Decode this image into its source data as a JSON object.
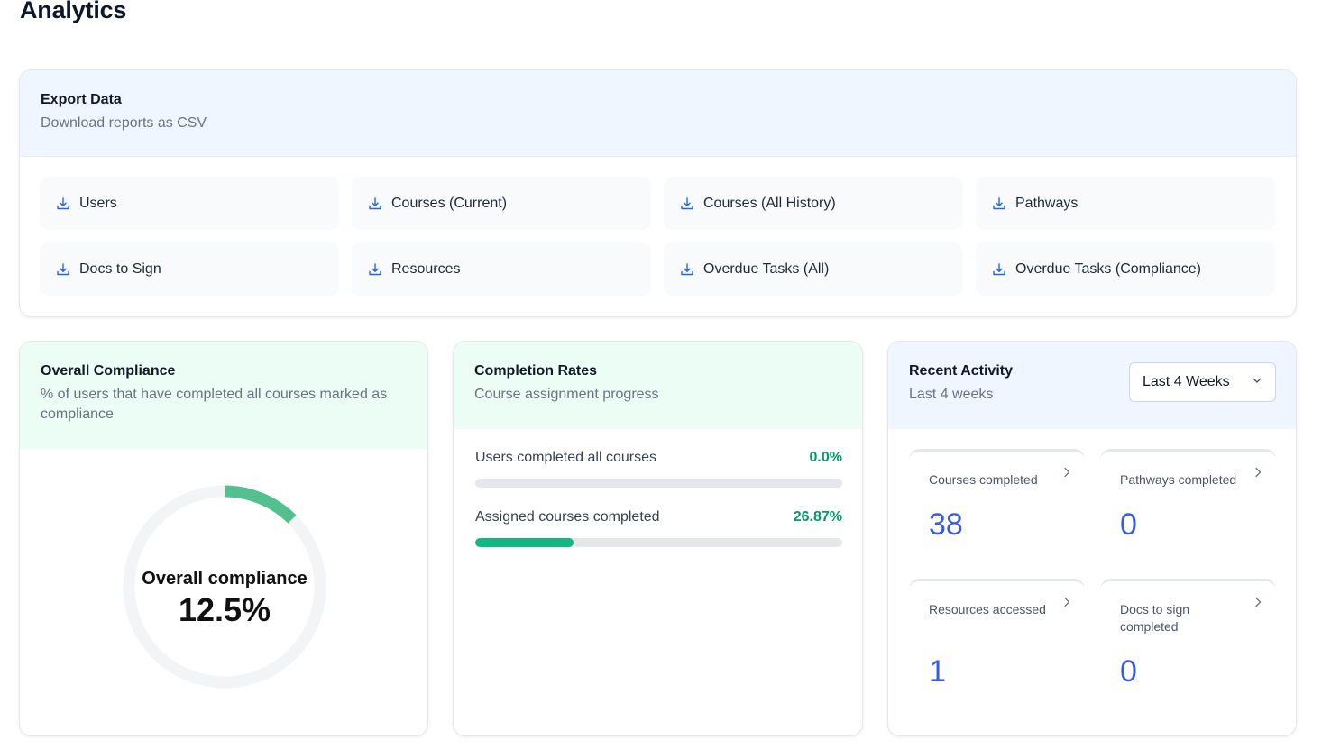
{
  "page": {
    "title": "Analytics"
  },
  "export": {
    "title": "Export Data",
    "subtitle": "Download reports as CSV",
    "buttons": [
      {
        "label": "Users",
        "icon": "download-icon"
      },
      {
        "label": "Courses (Current)",
        "icon": "download-icon"
      },
      {
        "label": "Courses (All History)",
        "icon": "download-icon"
      },
      {
        "label": "Pathways",
        "icon": "download-icon"
      },
      {
        "label": "Docs to Sign",
        "icon": "download-icon"
      },
      {
        "label": "Resources",
        "icon": "download-icon"
      },
      {
        "label": "Overdue Tasks (All)",
        "icon": "download-icon"
      },
      {
        "label": "Overdue Tasks (Compliance)",
        "icon": "download-icon"
      }
    ]
  },
  "compliance": {
    "title": "Overall Compliance",
    "subtitle": "% of users that have completed all courses marked as compliance",
    "center_label": "Overall compliance",
    "value_text": "12.5%",
    "fraction": 0.125,
    "color": "#52c08f"
  },
  "completion": {
    "title": "Completion Rates",
    "subtitle": "Course assignment progress",
    "rows": [
      {
        "label": "Users completed all courses",
        "pct_text": "0.0%",
        "fraction": 0.0
      },
      {
        "label": "Assigned courses completed",
        "pct_text": "26.87%",
        "fraction": 0.2687
      }
    ],
    "accent": "#10b981"
  },
  "activity": {
    "title": "Recent Activity",
    "subtitle": "Last 4 weeks",
    "period_selected": "Last 4 Weeks",
    "stats": [
      {
        "label": "Courses completed",
        "value": "38"
      },
      {
        "label": "Pathways completed",
        "value": "0"
      },
      {
        "label": "Resources accessed",
        "value": "1"
      },
      {
        "label": "Docs to sign completed",
        "value": "0"
      }
    ]
  }
}
